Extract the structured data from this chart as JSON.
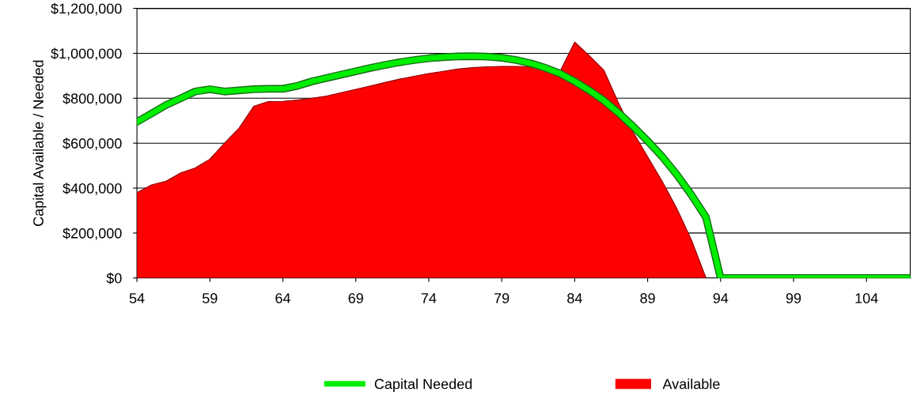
{
  "chart_data": {
    "type": "area",
    "ylabel": "Capital Available / Needed",
    "series": [
      {
        "name": "Capital Needed",
        "type": "line",
        "color": "#00ee00",
        "x": [
          54,
          55,
          56,
          57,
          58,
          59,
          60,
          61,
          62,
          63,
          64,
          65,
          66,
          67,
          68,
          69,
          70,
          71,
          72,
          73,
          74,
          75,
          76,
          77,
          78,
          79,
          80,
          81,
          82,
          83,
          84,
          85,
          86,
          87,
          88,
          89,
          90,
          91,
          92,
          93,
          94,
          95,
          96,
          97,
          98,
          99,
          100,
          101,
          102,
          103,
          104,
          105,
          106,
          107
        ],
        "values": [
          695000,
          732000,
          770000,
          800000,
          830000,
          840000,
          830000,
          835000,
          840000,
          842000,
          842000,
          855000,
          875000,
          890000,
          905000,
          920000,
          935000,
          948000,
          960000,
          970000,
          978000,
          983000,
          986000,
          987000,
          985000,
          980000,
          970000,
          955000,
          935000,
          910000,
          875000,
          835000,
          790000,
          735000,
          675000,
          610000,
          540000,
          460000,
          370000,
          270000,
          0,
          0,
          0,
          0,
          0,
          0,
          0,
          0,
          0,
          0,
          0,
          0,
          0,
          0
        ]
      },
      {
        "name": "Available",
        "color": "#ff0000",
        "x": [
          54,
          55,
          56,
          57,
          58,
          59,
          60,
          61,
          62,
          63,
          64,
          65,
          66,
          67,
          68,
          69,
          70,
          71,
          72,
          73,
          74,
          75,
          76,
          77,
          78,
          79,
          80,
          81,
          82,
          83,
          84,
          85,
          86,
          87,
          88,
          89,
          90,
          91,
          92,
          93
        ],
        "values": [
          380000,
          414000,
          431000,
          468000,
          490000,
          529000,
          600000,
          667000,
          764000,
          785000,
          786000,
          792000,
          800000,
          810000,
          825000,
          840000,
          855000,
          870000,
          885000,
          898000,
          910000,
          920000,
          930000,
          936000,
          940000,
          942000,
          942000,
          940000,
          930000,
          920000,
          1050000,
          990000,
          925000,
          780000,
          650000,
          540000,
          430000,
          310000,
          170000,
          0
        ]
      }
    ],
    "xlim": [
      54,
      107
    ],
    "xticks": [
      54,
      59,
      64,
      69,
      74,
      79,
      84,
      89,
      94,
      99,
      104
    ],
    "ylim": [
      0,
      1200000
    ],
    "yticks": [
      {
        "value": 0,
        "label": "$0"
      },
      {
        "value": 200000,
        "label": "$200,000"
      },
      {
        "value": 400000,
        "label": "$400,000"
      },
      {
        "value": 600000,
        "label": "$600,000"
      },
      {
        "value": 800000,
        "label": "$800,000"
      },
      {
        "value": 1000000,
        "label": "$1,000,000"
      },
      {
        "value": 1200000,
        "label": "$1,200,000"
      }
    ],
    "grid": "y",
    "legend": "bottom"
  }
}
